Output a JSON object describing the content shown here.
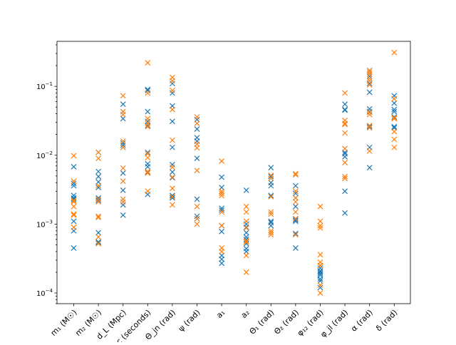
{
  "chart_data": {
    "type": "scatter",
    "title": "",
    "xlabel": "",
    "ylabel": "",
    "yscale": "log",
    "ylim": [
      7e-05,
      0.45
    ],
    "grid": false,
    "legend": "none",
    "marker": "x",
    "categories": [
      "m₁ (M☉)",
      "m₂ (M☉)",
      "d_L (Mpc)",
      "t_c (seconds)",
      "Θ_jn (rad)",
      "ψ (rad)",
      "a₁",
      "a₂",
      "Θ₁ (rad)",
      "Θ₂ (rad)",
      "φ₁₂ (rad)",
      "φ_jl (rad)",
      "α (rad)",
      "δ (rad)"
    ],
    "y_tick_labels": [
      {
        "value": 0.0001,
        "base": "10",
        "exp": "−4"
      },
      {
        "value": 0.001,
        "base": "10",
        "exp": "−3"
      },
      {
        "value": 0.01,
        "base": "10",
        "exp": "−2"
      },
      {
        "value": 0.1,
        "base": "10",
        "exp": "−1"
      }
    ],
    "series": [
      {
        "color": "#1f77b4",
        "values": [
          [
            0.0068,
            0.0039,
            0.0036,
            0.0026,
            0.0024,
            0.0023,
            0.0011,
            0.0008,
            0.00045
          ],
          [
            0.011,
            0.0058,
            0.0049,
            0.0041,
            0.0034,
            0.0024,
            0.0022,
            0.00075,
            0.00055,
            0.00054
          ],
          [
            0.055,
            0.034,
            0.015,
            0.014,
            0.013,
            0.0055,
            0.0031,
            0.0019,
            0.00135
          ],
          [
            0.09,
            0.087,
            0.043,
            0.031,
            0.027,
            0.011,
            0.0075,
            0.0068,
            0.0056,
            0.0027
          ],
          [
            0.11,
            0.08,
            0.052,
            0.031,
            0.013,
            0.0073,
            0.0057,
            0.0047,
            0.0026,
            0.0024
          ],
          [
            0.033,
            0.024,
            0.018,
            0.016,
            0.009,
            0.0023,
            0.0013,
            0.0012
          ],
          [
            0.0048,
            0.0034,
            0.0017,
            0.0016,
            0.00095,
            0.00078,
            0.00035,
            0.00031,
            0.00027
          ],
          [
            0.0031,
            0.001,
            0.0009,
            0.00075,
            0.00065,
            0.0006,
            0.00052,
            0.00044,
            0.0004
          ],
          [
            0.0066,
            0.0049,
            0.004,
            0.0036,
            0.0026,
            0.0011,
            0.00105,
            0.00095
          ],
          [
            0.0036,
            0.0028,
            0.0024,
            0.0018,
            0.0012,
            0.00115,
            0.0011,
            0.00073,
            0.00045
          ],
          [
            0.00025,
            0.00023,
            0.00021,
            0.0002,
            0.00019,
            0.00018,
            0.00016,
            0.00015,
            0.00012
          ],
          [
            0.055,
            0.046,
            0.045,
            0.011,
            0.0105,
            0.0095,
            0.003,
            0.00145
          ],
          [
            0.17,
            0.14,
            0.11,
            0.082,
            0.047,
            0.043,
            0.026,
            0.013,
            0.0066
          ],
          [
            0.073,
            0.057,
            0.046,
            0.043,
            0.036,
            0.026,
            0.025
          ]
        ]
      },
      {
        "color": "#ff7f0e",
        "values": [
          [
            0.0098,
            0.0042,
            0.0022,
            0.0021,
            0.0018,
            0.0014,
            0.00135,
            0.0009
          ],
          [
            0.011,
            0.009,
            0.0036,
            0.0023,
            0.0021,
            0.0013,
            0.00125,
            0.00065,
            0.00052
          ],
          [
            0.073,
            0.043,
            0.039,
            0.016,
            0.013,
            0.0065,
            0.0042,
            0.0023,
            0.0021
          ],
          [
            0.22,
            0.08,
            0.034,
            0.029,
            0.026,
            0.0105,
            0.0092,
            0.0058,
            0.0055,
            0.003
          ],
          [
            0.135,
            0.12,
            0.087,
            0.046,
            0.0165,
            0.0067,
            0.0048,
            0.0033,
            0.0025,
            0.0019
          ],
          [
            0.036,
            0.029,
            0.0145,
            0.0128,
            0.006,
            0.0018,
            0.0012,
            0.001
          ],
          [
            0.0082,
            0.003,
            0.0028,
            0.0026,
            0.0015,
            0.00095,
            0.00045,
            0.0004
          ],
          [
            0.0018,
            0.0015,
            0.0011,
            0.00088,
            0.00057,
            0.00055,
            0.00035,
            0.0002
          ],
          [
            0.0051,
            0.0046,
            0.0025,
            0.0015,
            0.0014,
            0.0008,
            0.00075,
            0.0007
          ],
          [
            0.0054,
            0.0052,
            0.003,
            0.0024,
            0.0021,
            0.0015,
            0.0012,
            0.0007
          ],
          [
            0.0018,
            0.0011,
            0.00095,
            0.00088,
            0.00036,
            0.00028,
            0.00025,
            0.00013,
            0.0001
          ],
          [
            0.08,
            0.032,
            0.029,
            0.028,
            0.021,
            0.0125,
            0.0078,
            0.0049,
            0.0046
          ],
          [
            0.17,
            0.16,
            0.15,
            0.13,
            0.12,
            0.105,
            0.042,
            0.039,
            0.027,
            0.025,
            0.0115
          ],
          [
            0.31,
            0.066,
            0.035,
            0.034,
            0.022,
            0.017,
            0.013
          ]
        ]
      }
    ]
  }
}
